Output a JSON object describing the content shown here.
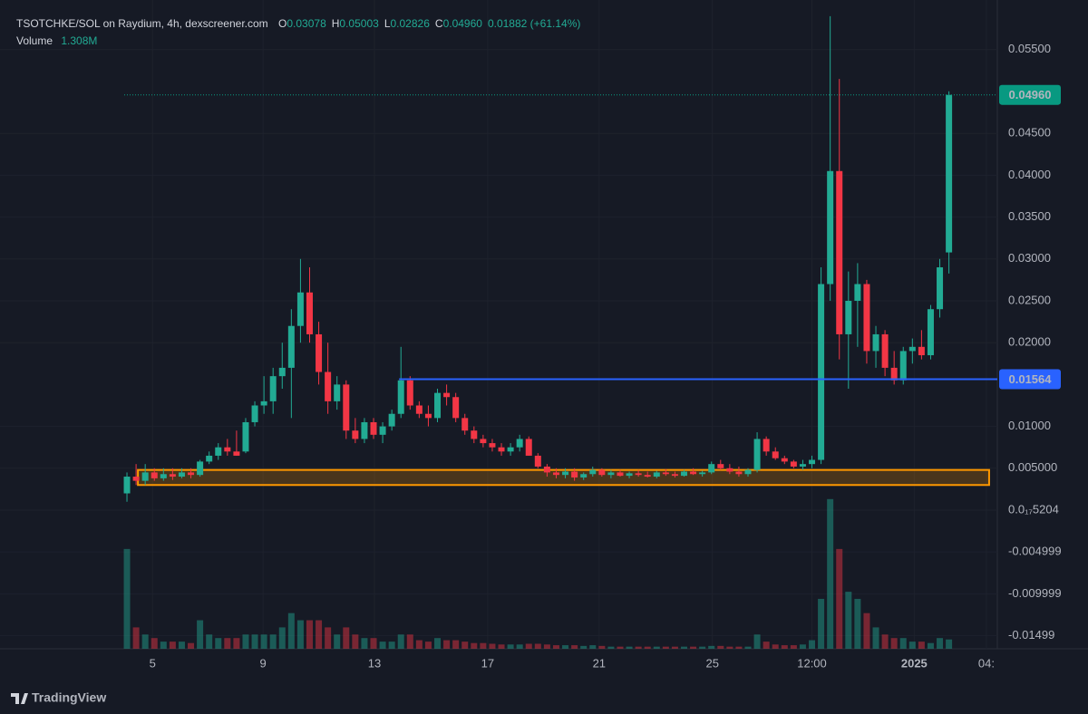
{
  "chart_data": {
    "type": "candlestick",
    "legend": {
      "symbol": "TSOTCHKE/SOL on Raydium, 4h, dexscreener.com",
      "fields": [
        {
          "key": "O",
          "value": "0.03078"
        },
        {
          "key": "H",
          "value": "0.05003"
        },
        {
          "key": "L",
          "value": "0.02826"
        },
        {
          "key": "C",
          "value": "0.04960"
        }
      ],
      "change": "0.01882 (+61.14%)",
      "volume_label": "Volume",
      "volume_value": "1.308M"
    },
    "footer": "TradingView",
    "up_color": "#22ab94",
    "down_color": "#f23645",
    "open": [
      0.002,
      0.004,
      0.0035,
      0.0045,
      0.0038,
      0.0043,
      0.004,
      0.0045,
      0.0042,
      0.0058,
      0.0065,
      0.0075,
      0.007,
      0.007,
      0.0105,
      0.0125,
      0.013,
      0.016,
      0.017,
      0.022,
      0.026,
      0.021,
      0.0165,
      0.013,
      0.015,
      0.0095,
      0.0085,
      0.0105,
      0.009,
      0.01,
      0.0115,
      0.0155,
      0.0125,
      0.0115,
      0.011,
      0.014,
      0.0135,
      0.011,
      0.0095,
      0.0085,
      0.008,
      0.0075,
      0.007,
      0.0075,
      0.0085,
      0.0065,
      0.0052,
      0.0045,
      0.0042,
      0.0046,
      0.0039,
      0.0043,
      0.0048,
      0.0042,
      0.0045,
      0.0041,
      0.0044,
      0.0042,
      0.004,
      0.0045,
      0.0043,
      0.0041,
      0.0046,
      0.0043,
      0.0045,
      0.0055,
      0.005,
      0.0046,
      0.0043,
      0.0048,
      0.0085,
      0.007,
      0.0062,
      0.0058,
      0.0052,
      0.0055,
      0.006,
      0.027,
      0.0405,
      0.021,
      0.025,
      0.027,
      0.019,
      0.021,
      0.017,
      0.0155,
      0.019,
      0.0195,
      0.0185,
      0.024,
      0.03078
    ],
    "high": [
      0.0045,
      0.0055,
      0.0055,
      0.005,
      0.005,
      0.005,
      0.005,
      0.005,
      0.006,
      0.007,
      0.008,
      0.0085,
      0.0095,
      0.011,
      0.013,
      0.016,
      0.017,
      0.02,
      0.024,
      0.03,
      0.029,
      0.0225,
      0.02,
      0.016,
      0.0155,
      0.011,
      0.011,
      0.011,
      0.0105,
      0.012,
      0.0195,
      0.016,
      0.013,
      0.0125,
      0.0145,
      0.015,
      0.014,
      0.0115,
      0.01,
      0.009,
      0.0085,
      0.008,
      0.008,
      0.009,
      0.0088,
      0.0068,
      0.0055,
      0.005,
      0.005,
      0.005,
      0.0045,
      0.0052,
      0.005,
      0.0048,
      0.0048,
      0.0046,
      0.0048,
      0.0046,
      0.0047,
      0.0049,
      0.0046,
      0.0048,
      0.005,
      0.0047,
      0.0058,
      0.006,
      0.0055,
      0.0052,
      0.005,
      0.0093,
      0.0088,
      0.0075,
      0.0065,
      0.006,
      0.006,
      0.0065,
      0.029,
      0.059,
      0.0515,
      0.0285,
      0.0295,
      0.0275,
      0.022,
      0.0215,
      0.019,
      0.0195,
      0.0205,
      0.0215,
      0.0245,
      0.03,
      0.05003
    ],
    "low": [
      0.001,
      0.003,
      0.003,
      0.0035,
      0.0035,
      0.0036,
      0.0038,
      0.0038,
      0.004,
      0.0055,
      0.006,
      0.0065,
      0.0065,
      0.0068,
      0.01,
      0.0115,
      0.0115,
      0.0145,
      0.011,
      0.02,
      0.02,
      0.015,
      0.0115,
      0.012,
      0.0085,
      0.008,
      0.008,
      0.0085,
      0.008,
      0.0095,
      0.011,
      0.012,
      0.011,
      0.01,
      0.0105,
      0.0125,
      0.0105,
      0.009,
      0.008,
      0.0075,
      0.007,
      0.0065,
      0.0065,
      0.007,
      0.0065,
      0.005,
      0.004,
      0.0038,
      0.0038,
      0.0035,
      0.0036,
      0.004,
      0.004,
      0.0038,
      0.004,
      0.0038,
      0.004,
      0.0039,
      0.0038,
      0.0041,
      0.0039,
      0.004,
      0.0042,
      0.004,
      0.0043,
      0.0048,
      0.0043,
      0.004,
      0.004,
      0.0045,
      0.0065,
      0.006,
      0.0055,
      0.005,
      0.0048,
      0.005,
      0.0055,
      0.025,
      0.018,
      0.0145,
      0.0195,
      0.0175,
      0.017,
      0.016,
      0.015,
      0.015,
      0.0175,
      0.018,
      0.018,
      0.023,
      0.02826
    ],
    "close": [
      0.004,
      0.0035,
      0.0045,
      0.0038,
      0.0043,
      0.004,
      0.0045,
      0.0042,
      0.0058,
      0.0065,
      0.0075,
      0.007,
      0.0065,
      0.0105,
      0.0125,
      0.013,
      0.016,
      0.017,
      0.022,
      0.026,
      0.021,
      0.0165,
      0.013,
      0.015,
      0.0095,
      0.0085,
      0.0105,
      0.009,
      0.01,
      0.0115,
      0.0155,
      0.0125,
      0.0115,
      0.011,
      0.014,
      0.0135,
      0.011,
      0.0095,
      0.0085,
      0.008,
      0.0075,
      0.007,
      0.0075,
      0.0085,
      0.0065,
      0.0052,
      0.0045,
      0.0042,
      0.0046,
      0.0039,
      0.0043,
      0.0048,
      0.0042,
      0.0045,
      0.0041,
      0.0044,
      0.0042,
      0.004,
      0.0045,
      0.0043,
      0.0041,
      0.0046,
      0.0043,
      0.0045,
      0.0055,
      0.005,
      0.0046,
      0.0043,
      0.0048,
      0.0085,
      0.007,
      0.0062,
      0.0058,
      0.0052,
      0.0055,
      0.006,
      0.027,
      0.0405,
      0.021,
      0.025,
      0.027,
      0.019,
      0.021,
      0.017,
      0.0155,
      0.019,
      0.0195,
      0.0185,
      0.024,
      0.029,
      0.0496
    ],
    "volume": [
      14,
      3,
      2,
      1.5,
      1,
      1,
      1,
      0.8,
      4,
      2,
      1.5,
      1.5,
      1.5,
      2,
      2,
      2,
      2,
      3,
      5,
      4,
      4,
      4,
      3,
      2,
      3,
      2,
      1.5,
      1.5,
      1,
      1,
      2,
      2,
      1.2,
      1,
      1.5,
      1.2,
      1.2,
      1,
      0.8,
      0.8,
      0.7,
      0.6,
      0.6,
      0.6,
      0.7,
      0.7,
      0.6,
      0.5,
      0.5,
      0.5,
      0.4,
      0.5,
      0.4,
      0.3,
      0.3,
      0.3,
      0.3,
      0.3,
      0.3,
      0.3,
      0.3,
      0.3,
      0.3,
      0.3,
      0.4,
      0.4,
      0.3,
      0.3,
      0.3,
      2,
      1,
      0.6,
      0.5,
      0.5,
      0.6,
      1.2,
      7,
      21,
      14,
      8,
      7,
      5,
      3,
      2,
      1.5,
      1.5,
      1,
      1,
      0.8,
      1.5,
      1.308
    ],
    "volume_lim": [
      0,
      30
    ],
    "xlim": [
      -0.3,
      95.3
    ],
    "xticks": [
      {
        "value": 2.8,
        "label": "5"
      },
      {
        "value": 14.9,
        "label": "9"
      },
      {
        "value": 27.1,
        "label": "13"
      },
      {
        "value": 39.5,
        "label": "17"
      },
      {
        "value": 51.7,
        "label": "21"
      },
      {
        "value": 64.1,
        "label": "25"
      },
      {
        "value": 75,
        "label": "12:00"
      },
      {
        "value": 86.2,
        "label": "2025"
      },
      {
        "value": 94.1,
        "label": "04:"
      }
    ],
    "ylim": [
      -0.01656,
      0.06093
    ],
    "yticks": [
      {
        "value": 0.055,
        "label": "0.05500"
      },
      {
        "value": 0.045,
        "label": "0.04500"
      },
      {
        "value": 0.04,
        "label": "0.04000"
      },
      {
        "value": 0.035,
        "label": "0.03500"
      },
      {
        "value": 0.03,
        "label": "0.03000"
      },
      {
        "value": 0.025,
        "label": "0.02500"
      },
      {
        "value": 0.02,
        "label": "0.02000"
      },
      {
        "value": 0.01,
        "label": "0.01000"
      },
      {
        "value": 0.005,
        "label": "0.005000"
      },
      {
        "value": 0,
        "label": "0.0₁₇5204"
      },
      {
        "value": -0.005,
        "label": "-0.004999"
      },
      {
        "value": -0.01,
        "label": "-0.009999"
      },
      {
        "value": -0.015,
        "label": "-0.01499"
      }
    ],
    "grid": true,
    "zone": {
      "ylim": [
        0.003,
        0.0048
      ],
      "xlim": [
        1.2,
        94.4
      ],
      "color": "#ff9800"
    },
    "price_lines": [
      {
        "value": 0.0496,
        "label": "0.04960",
        "color": "#089981",
        "style": "dotted",
        "x_start": -0.3
      },
      {
        "value": 0.01564,
        "label": "0.01564",
        "color": "#2962ff",
        "style": "solid",
        "x_start": 29.8
      }
    ]
  }
}
